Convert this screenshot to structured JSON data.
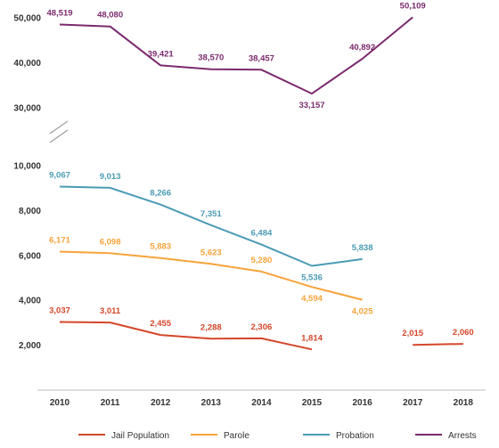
{
  "chart_data": {
    "type": "line",
    "x": [
      "2010",
      "2011",
      "2012",
      "2013",
      "2014",
      "2015",
      "2016",
      "2017",
      "2018"
    ],
    "y_ticks_lower": [
      "2,000",
      "4,000",
      "6,000",
      "8,000",
      "10,000"
    ],
    "y_ticks_upper": [
      "30,000",
      "40,000",
      "50,000"
    ],
    "axis_break": true,
    "legend_position": "bottom",
    "grid": false,
    "series": [
      {
        "name": "Jail Population",
        "color": "#d4472b",
        "values": [
          3037,
          3011,
          2455,
          2288,
          2306,
          1814,
          null,
          2015,
          2060
        ],
        "labels": [
          "3,037",
          "3,011",
          "2,455",
          "2,288",
          "2,306",
          "1,814",
          "",
          "2,015",
          "2,060"
        ]
      },
      {
        "name": "Parole",
        "color": "#f7a33a",
        "values": [
          6171,
          6098,
          5883,
          5623,
          5280,
          4594,
          4025,
          null,
          null
        ],
        "labels": [
          "6,171",
          "6,098",
          "5,883",
          "5,623",
          "5,280",
          "4,594",
          "4,025",
          "",
          ""
        ]
      },
      {
        "name": "Probation",
        "color": "#4a9bb5",
        "values": [
          9067,
          9013,
          8266,
          7351,
          6484,
          5536,
          5838,
          null,
          null
        ],
        "labels": [
          "9,067",
          "9,013",
          "8,266",
          "7,351",
          "6,484",
          "5,536",
          "5,838",
          "",
          ""
        ]
      },
      {
        "name": "Arrests",
        "color": "#7b2a6e",
        "values": [
          48519,
          48080,
          39421,
          38570,
          38457,
          33157,
          40892,
          50109,
          null
        ],
        "labels": [
          "48,519",
          "48,080",
          "39,421",
          "38,570",
          "38,457",
          "33,157",
          "40,892",
          "50,109",
          ""
        ]
      }
    ]
  }
}
